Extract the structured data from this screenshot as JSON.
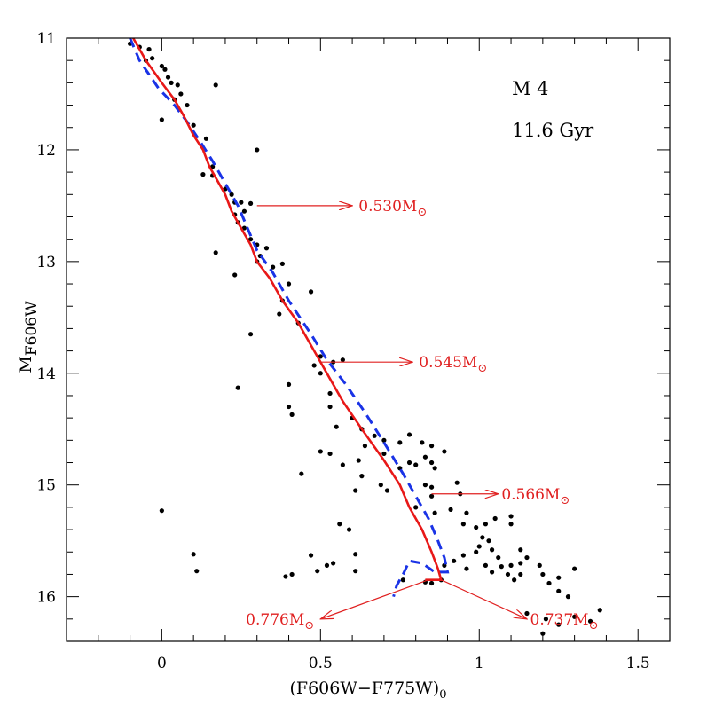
{
  "chart_data": {
    "type": "scatter",
    "xlabel": "(F606W−F775W)",
    "xlabel_sub": "0",
    "ylabel": "M",
    "ylabel_sub": "F606W",
    "xlim": [
      -0.3,
      1.6
    ],
    "ylim": [
      16.4,
      11.0
    ],
    "y_inverted": true,
    "x_ticks": [
      0,
      0.5,
      1,
      1.5
    ],
    "x_tick_labels": [
      "0",
      "0.5",
      "1",
      "1.5"
    ],
    "x_minor_step": 0.1,
    "y_ticks": [
      11,
      12,
      13,
      14,
      15,
      16
    ],
    "y_tick_labels": [
      "11",
      "12",
      "13",
      "14",
      "15",
      "16"
    ],
    "y_minor_step": 0.2,
    "grid": false,
    "cluster_label": "M 4",
    "age_label": "11.6 Gyr",
    "colors": {
      "isochrone_solid": "#e81818",
      "isochrone_dashed": "#1a33e6",
      "points": "#000000",
      "annotations": "#e02020"
    },
    "stars": [
      [
        -0.1,
        11.05
      ],
      [
        -0.07,
        11.08
      ],
      [
        -0.04,
        11.1
      ],
      [
        -0.05,
        11.2
      ],
      [
        -0.03,
        11.18
      ],
      [
        0.0,
        11.25
      ],
      [
        0.01,
        11.28
      ],
      [
        0.02,
        11.35
      ],
      [
        0.03,
        11.4
      ],
      [
        0.05,
        11.42
      ],
      [
        0.06,
        11.5
      ],
      [
        0.04,
        11.55
      ],
      [
        0.08,
        11.6
      ],
      [
        0.0,
        11.73
      ],
      [
        0.1,
        11.78
      ],
      [
        0.17,
        11.42
      ],
      [
        0.14,
        11.9
      ],
      [
        0.3,
        12.0
      ],
      [
        0.16,
        12.15
      ],
      [
        0.13,
        12.22
      ],
      [
        0.16,
        12.23
      ],
      [
        0.2,
        12.35
      ],
      [
        0.22,
        12.4
      ],
      [
        0.23,
        12.47
      ],
      [
        0.25,
        12.47
      ],
      [
        0.26,
        12.55
      ],
      [
        0.28,
        12.48
      ],
      [
        0.23,
        12.58
      ],
      [
        0.24,
        12.65
      ],
      [
        0.26,
        12.7
      ],
      [
        0.28,
        12.8
      ],
      [
        0.3,
        12.85
      ],
      [
        0.33,
        12.88
      ],
      [
        0.31,
        12.95
      ],
      [
        0.17,
        12.92
      ],
      [
        0.23,
        13.12
      ],
      [
        0.38,
        13.02
      ],
      [
        0.3,
        13.0
      ],
      [
        0.35,
        13.05
      ],
      [
        0.4,
        13.2
      ],
      [
        0.38,
        13.35
      ],
      [
        0.47,
        13.27
      ],
      [
        0.37,
        13.47
      ],
      [
        0.28,
        13.65
      ],
      [
        0.43,
        13.55
      ],
      [
        0.5,
        13.85
      ],
      [
        0.54,
        13.9
      ],
      [
        0.57,
        13.88
      ],
      [
        0.48,
        13.93
      ],
      [
        0.5,
        14.0
      ],
      [
        0.24,
        14.13
      ],
      [
        0.4,
        14.1
      ],
      [
        0.4,
        14.3
      ],
      [
        0.41,
        14.37
      ],
      [
        0.53,
        14.18
      ],
      [
        0.53,
        14.3
      ],
      [
        0.55,
        14.48
      ],
      [
        0.6,
        14.4
      ],
      [
        0.63,
        14.5
      ],
      [
        0.67,
        14.56
      ],
      [
        0.64,
        14.65
      ],
      [
        0.7,
        14.6
      ],
      [
        0.75,
        14.62
      ],
      [
        0.78,
        14.55
      ],
      [
        0.82,
        14.62
      ],
      [
        0.7,
        14.72
      ],
      [
        0.85,
        14.65
      ],
      [
        0.89,
        14.7
      ],
      [
        0.83,
        14.75
      ],
      [
        0.85,
        14.8
      ],
      [
        0.86,
        14.85
      ],
      [
        0.78,
        14.8
      ],
      [
        0.8,
        14.82
      ],
      [
        0.75,
        14.85
      ],
      [
        0.5,
        14.7
      ],
      [
        0.53,
        14.72
      ],
      [
        0.57,
        14.82
      ],
      [
        0.62,
        14.78
      ],
      [
        0.63,
        14.92
      ],
      [
        0.44,
        14.9
      ],
      [
        0.61,
        15.05
      ],
      [
        0.69,
        15.0
      ],
      [
        0.71,
        15.05
      ],
      [
        0.83,
        15.0
      ],
      [
        0.85,
        15.02
      ],
      [
        0.93,
        14.98
      ],
      [
        0.94,
        15.08
      ],
      [
        0.85,
        15.1
      ],
      [
        0.8,
        15.2
      ],
      [
        0.86,
        15.25
      ],
      [
        0.91,
        15.22
      ],
      [
        0.96,
        15.25
      ],
      [
        0.95,
        15.35
      ],
      [
        0.99,
        15.38
      ],
      [
        1.02,
        15.35
      ],
      [
        1.01,
        15.47
      ],
      [
        1.03,
        15.5
      ],
      [
        1.05,
        15.3
      ],
      [
        1.1,
        15.28
      ],
      [
        1.1,
        15.35
      ],
      [
        1.0,
        15.55
      ],
      [
        0.99,
        15.6
      ],
      [
        1.04,
        15.58
      ],
      [
        1.06,
        15.65
      ],
      [
        0.95,
        15.63
      ],
      [
        0.92,
        15.68
      ],
      [
        0.89,
        15.72
      ],
      [
        0.96,
        15.75
      ],
      [
        1.02,
        15.72
      ],
      [
        1.04,
        15.78
      ],
      [
        1.07,
        15.73
      ],
      [
        1.09,
        15.8
      ],
      [
        1.1,
        15.72
      ],
      [
        1.11,
        15.85
      ],
      [
        1.13,
        15.7
      ],
      [
        1.13,
        15.8
      ],
      [
        1.15,
        15.65
      ],
      [
        1.13,
        15.58
      ],
      [
        1.19,
        15.72
      ],
      [
        1.2,
        15.8
      ],
      [
        1.25,
        15.83
      ],
      [
        1.3,
        15.75
      ],
      [
        1.22,
        15.88
      ],
      [
        1.25,
        15.95
      ],
      [
        1.28,
        16.0
      ],
      [
        0.0,
        15.23
      ],
      [
        0.1,
        15.62
      ],
      [
        0.11,
        15.77
      ],
      [
        0.56,
        15.35
      ],
      [
        0.59,
        15.4
      ],
      [
        0.47,
        15.63
      ],
      [
        0.52,
        15.72
      ],
      [
        0.54,
        15.7
      ],
      [
        0.61,
        15.62
      ],
      [
        0.61,
        15.77
      ],
      [
        0.49,
        15.77
      ],
      [
        0.41,
        15.8
      ],
      [
        0.39,
        15.82
      ],
      [
        0.76,
        15.85
      ],
      [
        0.83,
        15.87
      ],
      [
        0.85,
        15.88
      ],
      [
        0.88,
        15.85
      ],
      [
        1.15,
        16.15
      ],
      [
        1.21,
        16.2
      ],
      [
        1.25,
        16.25
      ],
      [
        1.3,
        16.18
      ],
      [
        1.35,
        16.22
      ],
      [
        1.38,
        16.12
      ],
      [
        1.2,
        16.33
      ]
    ],
    "isochrone_solid": [
      [
        -0.09,
        11.0
      ],
      [
        -0.05,
        11.2
      ],
      [
        0.0,
        11.4
      ],
      [
        0.04,
        11.55
      ],
      [
        0.07,
        11.7
      ],
      [
        0.1,
        11.87
      ],
      [
        0.13,
        12.0
      ],
      [
        0.15,
        12.15
      ],
      [
        0.18,
        12.3
      ],
      [
        0.2,
        12.4
      ],
      [
        0.22,
        12.55
      ],
      [
        0.25,
        12.7
      ],
      [
        0.28,
        12.85
      ],
      [
        0.3,
        13.0
      ],
      [
        0.34,
        13.15
      ],
      [
        0.38,
        13.35
      ],
      [
        0.43,
        13.55
      ],
      [
        0.48,
        13.8
      ],
      [
        0.52,
        14.0
      ],
      [
        0.57,
        14.25
      ],
      [
        0.63,
        14.5
      ],
      [
        0.7,
        14.78
      ],
      [
        0.75,
        15.0
      ],
      [
        0.78,
        15.2
      ],
      [
        0.82,
        15.4
      ],
      [
        0.85,
        15.6
      ],
      [
        0.87,
        15.75
      ],
      [
        0.88,
        15.85
      ],
      [
        0.83,
        15.85
      ]
    ],
    "isochrone_dashed": [
      [
        -0.1,
        11.0
      ],
      [
        -0.07,
        11.2
      ],
      [
        -0.01,
        11.45
      ],
      [
        0.04,
        11.6
      ],
      [
        0.08,
        11.75
      ],
      [
        0.12,
        11.92
      ],
      [
        0.16,
        12.1
      ],
      [
        0.2,
        12.3
      ],
      [
        0.24,
        12.5
      ],
      [
        0.27,
        12.7
      ],
      [
        0.3,
        12.9
      ],
      [
        0.35,
        13.1
      ],
      [
        0.4,
        13.35
      ],
      [
        0.47,
        13.65
      ],
      [
        0.52,
        13.88
      ],
      [
        0.58,
        14.1
      ],
      [
        0.64,
        14.35
      ],
      [
        0.7,
        14.62
      ],
      [
        0.76,
        14.9
      ],
      [
        0.8,
        15.1
      ],
      [
        0.84,
        15.3
      ],
      [
        0.87,
        15.5
      ],
      [
        0.89,
        15.65
      ],
      [
        0.9,
        15.78
      ],
      [
        0.86,
        15.78
      ],
      [
        0.82,
        15.7
      ],
      [
        0.78,
        15.68
      ],
      [
        0.76,
        15.8
      ],
      [
        0.74,
        15.9
      ],
      [
        0.73,
        16.0
      ]
    ],
    "annotations": [
      {
        "label": "0.530M",
        "symbol": "⊙",
        "from": [
          0.3,
          12.5
        ],
        "to": [
          0.6,
          12.5
        ],
        "text_x": 0.62,
        "text_y": 12.5,
        "anchor": "start"
      },
      {
        "label": "0.545M",
        "symbol": "⊙",
        "from": [
          0.5,
          13.9
        ],
        "to": [
          0.79,
          13.9
        ],
        "text_x": 0.81,
        "text_y": 13.9,
        "anchor": "start"
      },
      {
        "label": "0.566M",
        "symbol": "⊙",
        "from": [
          0.85,
          15.08
        ],
        "to": [
          1.06,
          15.08
        ],
        "text_x": 1.07,
        "text_y": 15.08,
        "anchor": "start"
      },
      {
        "label": "0.776M",
        "symbol": "⊙",
        "from": [
          0.84,
          15.85
        ],
        "to": [
          0.5,
          16.2
        ],
        "text_x": 0.48,
        "text_y": 16.2,
        "anchor": "end"
      },
      {
        "label": "0.737M",
        "symbol": "⊙",
        "from": [
          0.88,
          15.85
        ],
        "to": [
          1.15,
          16.2
        ],
        "text_x": 1.16,
        "text_y": 16.2,
        "anchor": "start"
      }
    ]
  }
}
